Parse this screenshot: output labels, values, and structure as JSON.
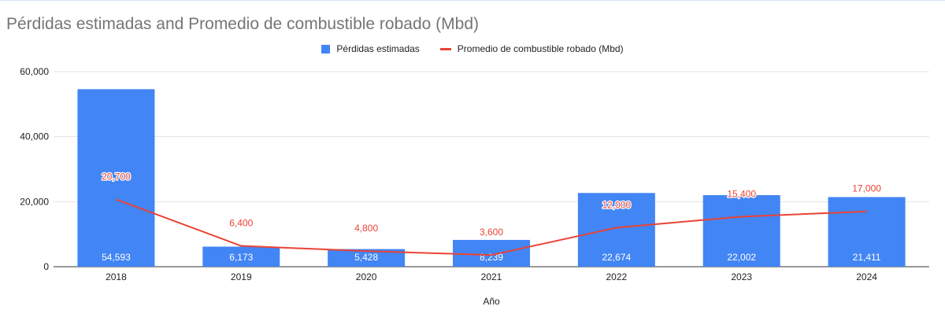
{
  "colors": {
    "bar": "#4285f4",
    "line": "#ea4335",
    "grid": "#e3e3e3",
    "axis": "#333333",
    "title": "#757575",
    "text": "#222222"
  },
  "chart_data": {
    "type": "bar",
    "title": "Pérdidas estimadas and Promedio de combustible robado (Mbd)",
    "xlabel": "Año",
    "ylabel": "",
    "ylim": [
      0,
      60000
    ],
    "yticks": [
      0,
      20000,
      40000,
      60000
    ],
    "ytick_labels": [
      "0",
      "20,000",
      "40,000",
      "60,000"
    ],
    "grid": true,
    "legend_position": "top",
    "categories": [
      "2018",
      "2019",
      "2020",
      "2021",
      "2022",
      "2023",
      "2024"
    ],
    "series": [
      {
        "name": "Pérdidas estimadas",
        "type": "bar",
        "color_key": "bar",
        "values": [
          54593,
          6173,
          5428,
          8239,
          22674,
          22002,
          21411
        ],
        "labels": [
          "54,593",
          "6,173",
          "5,428",
          "8,239",
          "22,674",
          "22,002",
          "21,411"
        ]
      },
      {
        "name": "Promedio de combustible robado (Mbd)",
        "type": "line",
        "color_key": "line",
        "values": [
          20700,
          6400,
          4800,
          3600,
          12000,
          15400,
          17000
        ],
        "labels": [
          "20,700",
          "6,400",
          "4,800",
          "3,600",
          "12,000",
          "15,400",
          "17,000"
        ]
      }
    ]
  }
}
